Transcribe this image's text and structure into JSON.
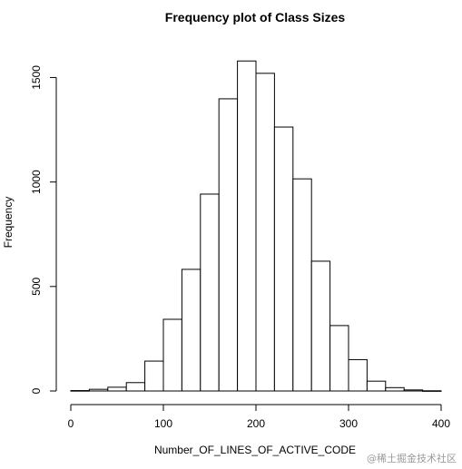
{
  "chart_data": {
    "type": "bar",
    "title": "Frequency plot of Class Sizes",
    "xlabel": "Number_OF_LINES_OF_ACTIVE_CODE",
    "ylabel": "Frequency",
    "xlim": [
      0,
      400
    ],
    "ylim": [
      0,
      1580
    ],
    "x_ticks": [
      0,
      100,
      200,
      300,
      400
    ],
    "y_ticks": [
      0,
      500,
      1000,
      1500
    ],
    "grid": false,
    "bin_width": 20,
    "bins": [
      {
        "x0": 0,
        "x1": 20,
        "value": 2
      },
      {
        "x0": 20,
        "x1": 40,
        "value": 8
      },
      {
        "x0": 40,
        "x1": 60,
        "value": 18
      },
      {
        "x0": 60,
        "x1": 80,
        "value": 40
      },
      {
        "x0": 80,
        "x1": 100,
        "value": 143
      },
      {
        "x0": 100,
        "x1": 120,
        "value": 343
      },
      {
        "x0": 120,
        "x1": 140,
        "value": 582
      },
      {
        "x0": 140,
        "x1": 160,
        "value": 942
      },
      {
        "x0": 160,
        "x1": 180,
        "value": 1398
      },
      {
        "x0": 180,
        "x1": 200,
        "value": 1579
      },
      {
        "x0": 200,
        "x1": 220,
        "value": 1520
      },
      {
        "x0": 220,
        "x1": 240,
        "value": 1263
      },
      {
        "x0": 240,
        "x1": 260,
        "value": 1015
      },
      {
        "x0": 260,
        "x1": 280,
        "value": 621
      },
      {
        "x0": 280,
        "x1": 300,
        "value": 313
      },
      {
        "x0": 300,
        "x1": 320,
        "value": 150
      },
      {
        "x0": 320,
        "x1": 340,
        "value": 47
      },
      {
        "x0": 340,
        "x1": 360,
        "value": 16
      },
      {
        "x0": 360,
        "x1": 380,
        "value": 5
      },
      {
        "x0": 380,
        "x1": 400,
        "value": 1
      }
    ]
  },
  "watermark": "@稀土掘金技术社区"
}
